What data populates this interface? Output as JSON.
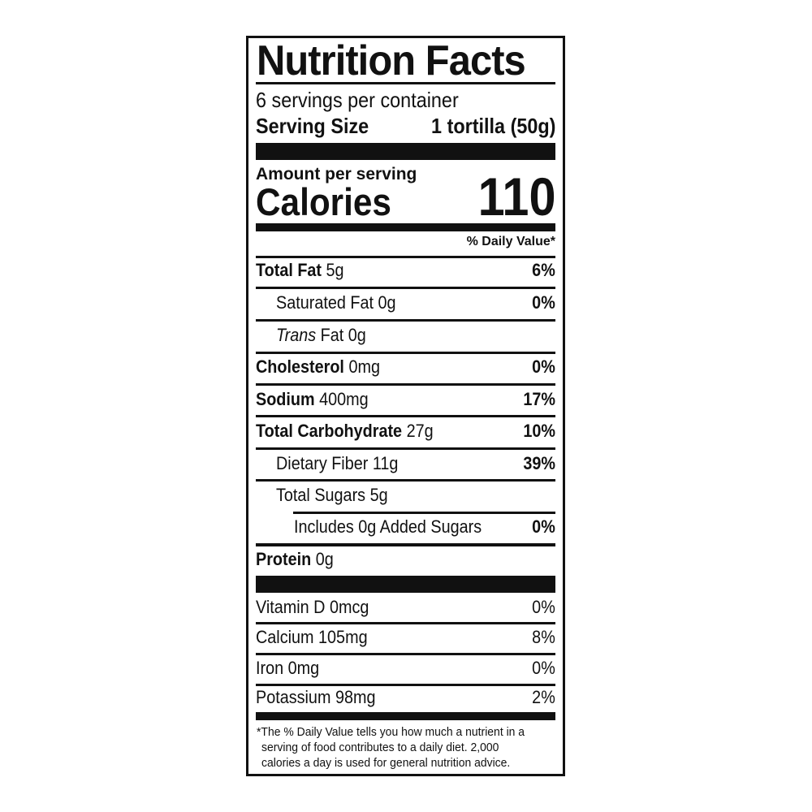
{
  "title": "Nutrition Facts",
  "servings_per_container": "6 servings per container",
  "serving_size": {
    "label": "Serving Size",
    "value": "1 tortilla (50g)"
  },
  "amount_per_serving": "Amount per serving",
  "calories": {
    "label": "Calories",
    "value": "110"
  },
  "daily_value_header": "% Daily Value*",
  "nutrients": [
    {
      "name": "Total Fat",
      "amount": "5g",
      "dv": "6%"
    },
    {
      "name": "Saturated Fat",
      "amount": "0g",
      "dv": "0%"
    },
    {
      "name": "Trans",
      "name_suffix": "Fat",
      "amount": "0g",
      "dv": ""
    },
    {
      "name": "Cholesterol",
      "amount": "0mg",
      "dv": "0%"
    },
    {
      "name": "Sodium",
      "amount": "400mg",
      "dv": "17%"
    },
    {
      "name": "Total Carbohydrate",
      "amount": "27g",
      "dv": "10%"
    },
    {
      "name": "Dietary Fiber",
      "amount": "11g",
      "dv": "39%"
    },
    {
      "name": "Total Sugars",
      "amount": "5g",
      "dv": ""
    },
    {
      "name": "Includes 0g Added Sugars",
      "amount": "",
      "dv": "0%"
    },
    {
      "name": "Protein",
      "amount": "0g",
      "dv": ""
    }
  ],
  "vitamins": [
    {
      "name": "Vitamin D",
      "amount": "0mcg",
      "dv": "0%"
    },
    {
      "name": "Calcium",
      "amount": "105mg",
      "dv": "8%"
    },
    {
      "name": "Iron",
      "amount": "0mg",
      "dv": "0%"
    },
    {
      "name": "Potassium",
      "amount": "98mg",
      "dv": "2%"
    }
  ],
  "footnote": [
    "*The % Daily Value tells you how much a nutrient in a",
    "serving of food contributes to a daily diet. 2,000",
    "calories a day is used for general nutrition advice."
  ]
}
